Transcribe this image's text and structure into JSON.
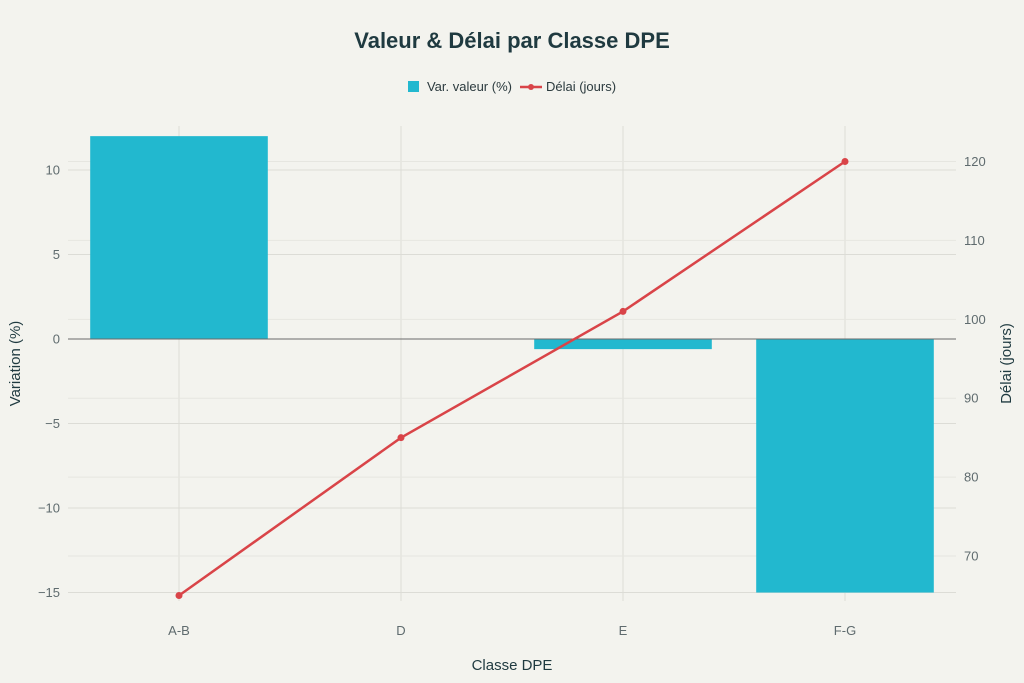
{
  "chart_data": {
    "type": "bar",
    "title": "Valeur & Délai par Classe DPE",
    "xlabel": "Classe DPE",
    "ylabel": "Variation (%)",
    "y2label": "Délai (jours)",
    "categories": [
      "A-B",
      "D",
      "E",
      "F-G"
    ],
    "series": [
      {
        "name": "Var. valeur (%)",
        "type": "bar",
        "axis": "left",
        "color": "#22b8cf",
        "values": [
          12,
          0,
          -0.6,
          -15
        ]
      },
      {
        "name": "Délai (jours)",
        "type": "line",
        "axis": "right",
        "color": "#d94448",
        "values": [
          65,
          85,
          101,
          120
        ]
      }
    ],
    "ylim": [
      -15.5,
      12.6
    ],
    "y2lim": [
      64.3,
      124.5
    ],
    "yticks": [
      10,
      5,
      0,
      -5,
      -10,
      -15
    ],
    "yticks_labels": [
      "10",
      "5",
      "0",
      "−5",
      "−10",
      "−15"
    ],
    "y2ticks": [
      120,
      110,
      100,
      90,
      80,
      70
    ],
    "grid": true,
    "legend_position": "top-center"
  }
}
